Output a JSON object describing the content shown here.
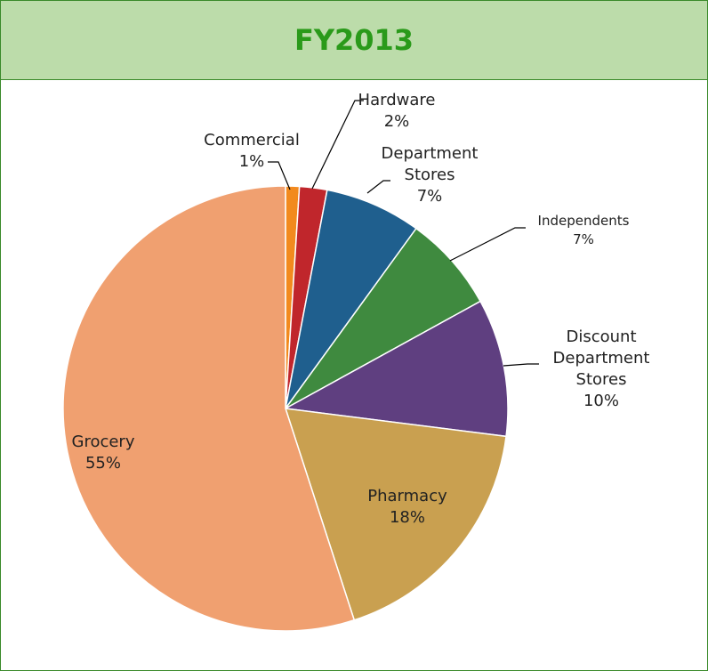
{
  "chart_data": {
    "type": "pie",
    "title": "FY2013",
    "categories": [
      "Commercial",
      "Hardware",
      "Department Stores",
      "Independents",
      "Discount Department Stores",
      "Pharmacy",
      "Grocery"
    ],
    "values": [
      1,
      2,
      7,
      7,
      10,
      18,
      55
    ],
    "value_labels": [
      "1%",
      "2%",
      "7%",
      "7%",
      "10%",
      "18%",
      "55%"
    ],
    "colors": [
      "#f28a1e",
      "#c0262c",
      "#1f5f8e",
      "#3f8a3f",
      "#5f3f80",
      "#c9a050",
      "#f0a070"
    ]
  }
}
